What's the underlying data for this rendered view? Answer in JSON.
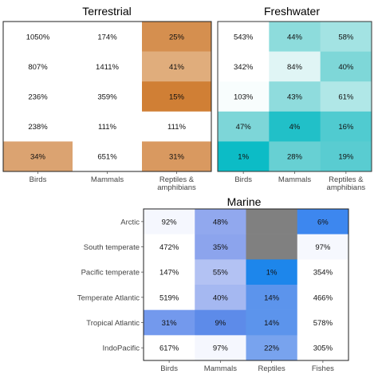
{
  "chart_data": [
    {
      "type": "heatmap",
      "title": "Terrestrial",
      "categories": [
        "Birds",
        "Mammals",
        "Reptiles & amphibians"
      ],
      "category_lines": [
        [
          "Birds"
        ],
        [
          "Mammals"
        ],
        [
          "Reptiles &",
          "amphibians"
        ]
      ],
      "rows": [
        "",
        "",
        "",
        "",
        ""
      ],
      "values": [
        [
          "1050%",
          "174%",
          "25%"
        ],
        [
          "807%",
          "1411%",
          "41%"
        ],
        [
          "236%",
          "359%",
          "15%"
        ],
        [
          "238%",
          "111%",
          "111%"
        ],
        [
          "34%",
          "651%",
          "31%"
        ]
      ],
      "colors": [
        [
          "#ffffff",
          "#ffffff",
          "#d58f4f"
        ],
        [
          "#ffffff",
          "#ffffff",
          "#e0ad7c"
        ],
        [
          "#ffffff",
          "#ffffff",
          "#d07f35"
        ],
        [
          "#ffffff",
          "#ffffff",
          "#ffffff"
        ],
        [
          "#dba371",
          "#ffffff",
          "#d99960"
        ]
      ],
      "border_color": "#1f1f1f"
    },
    {
      "type": "heatmap",
      "title": "Freshwater",
      "categories": [
        "Birds",
        "Mammals",
        "Reptiles & amphibians"
      ],
      "category_lines": [
        [
          "Birds"
        ],
        [
          "Mammals"
        ],
        [
          "Reptiles &",
          "amphibians"
        ]
      ],
      "rows": [
        "",
        "",
        "",
        "",
        ""
      ],
      "values": [
        [
          "543%",
          "44%",
          "58%"
        ],
        [
          "342%",
          "84%",
          "40%"
        ],
        [
          "103%",
          "43%",
          "61%"
        ],
        [
          "47%",
          "4%",
          "16%"
        ],
        [
          "1%",
          "28%",
          "19%"
        ]
      ],
      "colors": [
        [
          "#ffffff",
          "#8ddcdc",
          "#a3e3e3"
        ],
        [
          "#ffffff",
          "#e0f5f5",
          "#7ed7d8"
        ],
        [
          "#f8fdfd",
          "#8fdcdd",
          "#b0e7e7"
        ],
        [
          "#7dd6d8",
          "#21c0c8",
          "#50cbd0"
        ],
        [
          "#0cbcc6",
          "#67d0d3",
          "#59ccd1"
        ]
      ],
      "border_color": "#333333"
    },
    {
      "type": "heatmap",
      "title": "Marine",
      "categories": [
        "Birds",
        "Mammals",
        "Reptiles",
        "Fishes"
      ],
      "rows": [
        "Arctic",
        "South temperate",
        "Pacific temperate",
        "Temperate Atlantic",
        "Tropical Atlantic",
        "IndoPacific"
      ],
      "values": [
        [
          "92%",
          "48%",
          "",
          "6%"
        ],
        [
          "472%",
          "35%",
          "",
          "97%"
        ],
        [
          "147%",
          "55%",
          "1%",
          "354%"
        ],
        [
          "519%",
          "40%",
          "14%",
          "466%"
        ],
        [
          "31%",
          "9%",
          "14%",
          "578%"
        ],
        [
          "617%",
          "97%",
          "22%",
          "305%"
        ]
      ],
      "colors": [
        [
          "#f5f7fe",
          "#91a8ee",
          "#808080",
          "#3d87ef"
        ],
        [
          "#ffffff",
          "#8ca4ed",
          "#808080",
          "#f6f8fe"
        ],
        [
          "#ffffff",
          "#b3c2f3",
          "#1d86eb",
          "#ffffff"
        ],
        [
          "#ffffff",
          "#a5b8f1",
          "#5c94ec",
          "#ffffff"
        ],
        [
          "#7399ed",
          "#5d8be9",
          "#5c94ec",
          "#ffffff"
        ],
        [
          "#ffffff",
          "#f5f7fe",
          "#78a3ee",
          "#ffffff"
        ]
      ],
      "border_color": "#1f1f1f"
    }
  ]
}
